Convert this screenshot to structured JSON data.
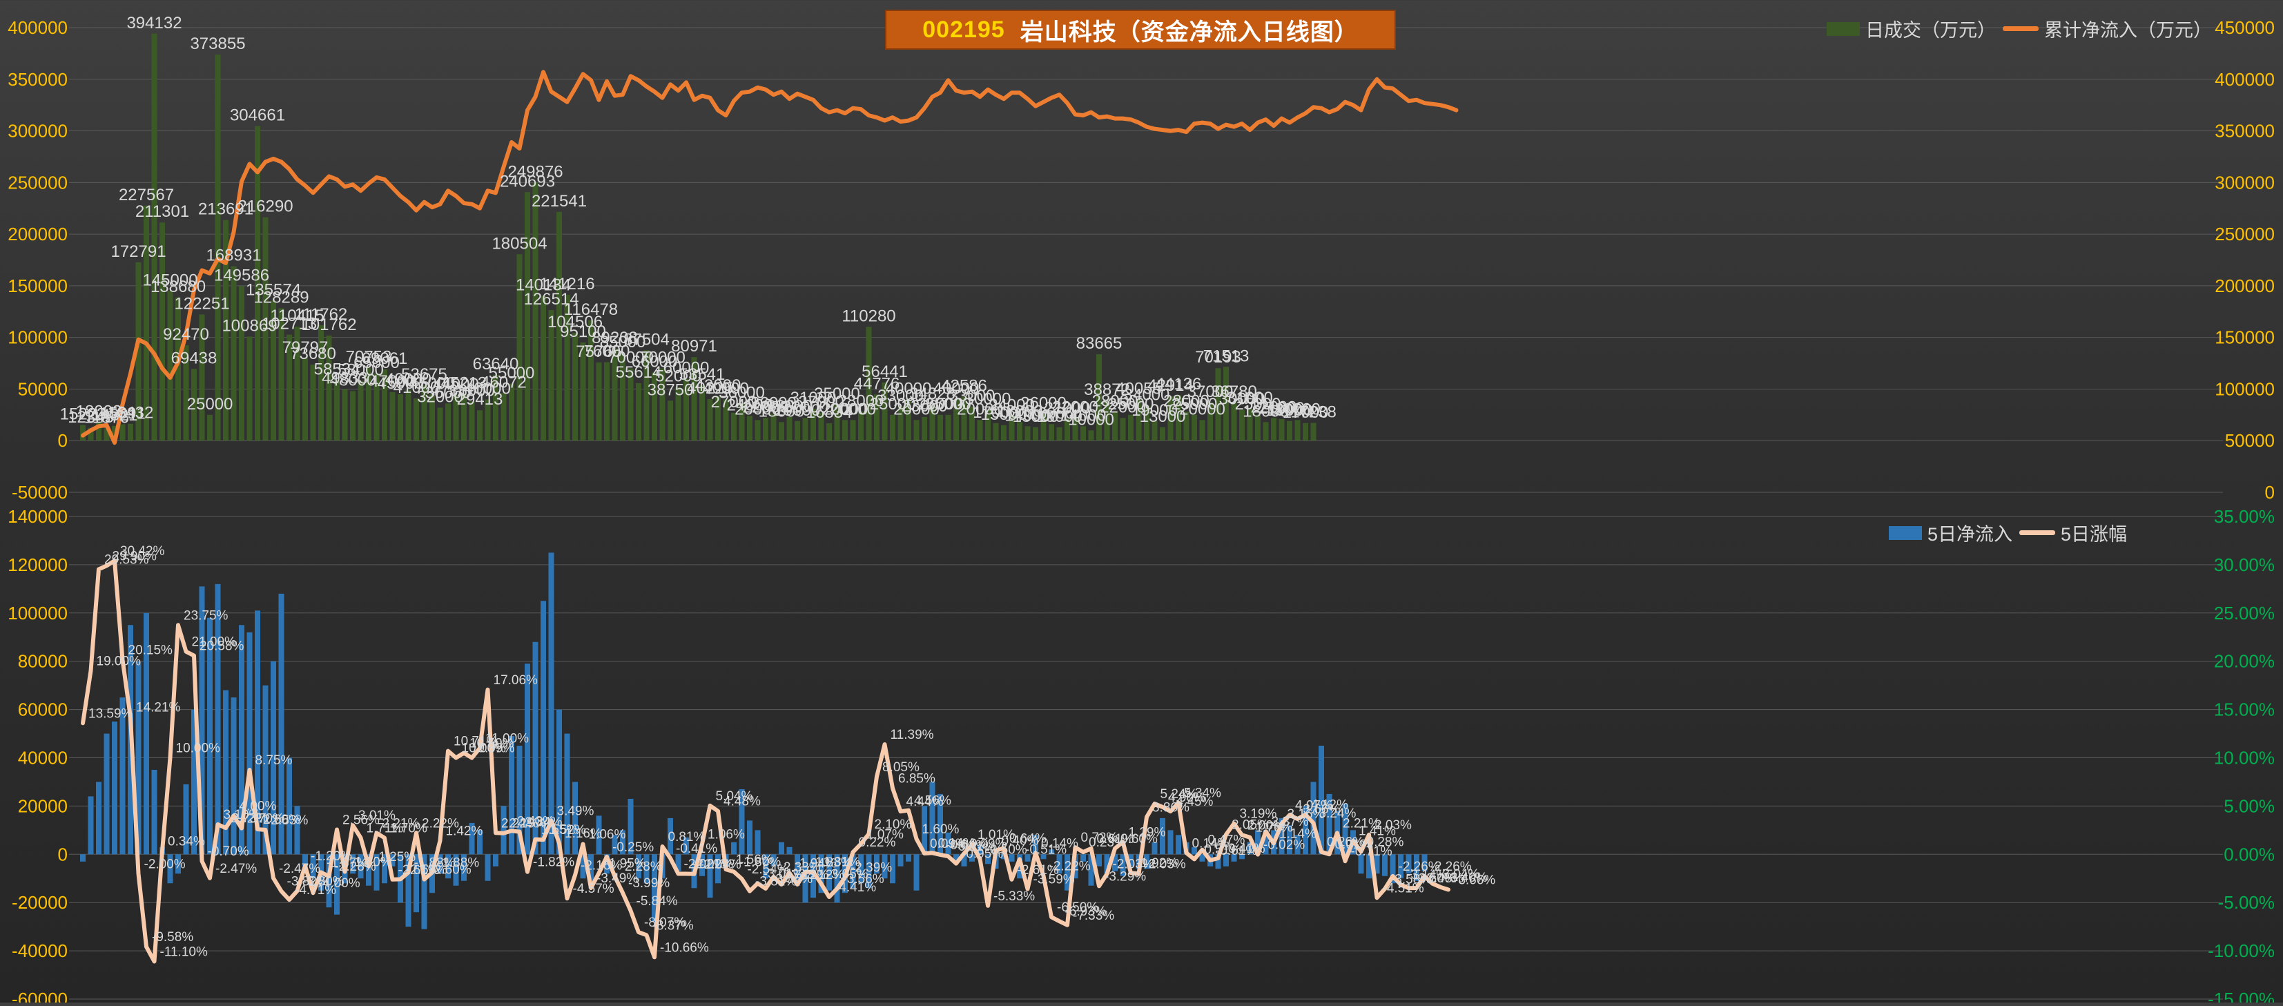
{
  "title": {
    "code": "002195",
    "text": "岩山科技（资金净流入日线图）"
  },
  "legend_top": {
    "bar": "日成交（万元）",
    "line": "累计净流入（万元）"
  },
  "legend_bottom": {
    "bar": "5日净流入",
    "line": "5日涨幅"
  },
  "colors": {
    "volume_bar": "#3c5a26",
    "cum_line": "#ed7d31",
    "inflow_bar": "#2e75b6",
    "change_line": "#f8cbad",
    "left_tick": "#ffc000",
    "right_tick_top": "#ffc000",
    "right_tick_bottom": "#00b050",
    "label": "#d9d9d9"
  },
  "chart_data": [
    {
      "type": "bar+line",
      "title": "002195 岩山科技（资金净流入日线图）",
      "left_axis": {
        "range": [
          -50000,
          400000
        ],
        "ticks": [
          "-50000",
          "0",
          "50000",
          "100000",
          "150000",
          "200000",
          "250000",
          "300000",
          "350000",
          "400000"
        ]
      },
      "right_axis": {
        "range": [
          0,
          450000
        ],
        "ticks": [
          "0",
          "50000",
          "100000",
          "150000",
          "200000",
          "250000",
          "300000",
          "350000",
          "400000",
          "450000"
        ]
      },
      "series": [
        {
          "name": "日成交（万元）",
          "type": "bar",
          "axis": "left",
          "values": [
            15223,
            12345,
            18002,
            11876,
            14321,
            15891,
            16432,
            172791,
            227567,
            394132,
            211301,
            145000,
            138680,
            92470,
            69438,
            122251,
            25000,
            373855,
            213691,
            168931,
            149586,
            100869,
            304661,
            216290,
            135574,
            128289,
            102713,
            110415,
            79797,
            73680,
            111762,
            101762,
            58534,
            49833,
            48000,
            58000,
            70753,
            65000,
            69061,
            47000,
            45000,
            49000,
            41000,
            53675,
            45000,
            32000,
            36000,
            44000,
            45213,
            38000,
            29413,
            40000,
            63640,
            46072,
            55000,
            180504,
            240693,
            249876,
            140134,
            126514,
            221541,
            141216,
            104506,
            95100,
            116478,
            75765,
            76000,
            89208,
            85000,
            70000,
            55614,
            87504,
            66000,
            70000,
            38750,
            52000,
            60000,
            80971,
            53541,
            40225,
            43000,
            40000,
            27000,
            36000,
            24000,
            20000,
            22000,
            26000,
            18000,
            23000,
            19000,
            22000,
            31000,
            27000,
            16834,
            35000,
            20000,
            20000,
            28000,
            110280,
            44776,
            56441,
            25000,
            33000,
            40000,
            20000,
            23000,
            34828,
            25000,
            25000,
            40000,
            42586,
            33000,
            20000,
            30000,
            17000,
            15000,
            24000,
            18000,
            14000,
            13000,
            26000,
            16000,
            13000,
            21000,
            22000,
            14000,
            10000,
            83665,
            38872,
            28000,
            22000,
            25000,
            40055,
            34000,
            19000,
            13000,
            42914,
            44136,
            28000,
            25000,
            20000,
            37000,
            70193,
            71513,
            36780,
            30000,
            31000,
            25000,
            18000,
            22000,
            21000,
            19000,
            20000,
            17000,
            17238
          ]
        },
        {
          "name": "累计净流入（万元）",
          "type": "line",
          "axis": "right",
          "values": [
            55000,
            60000,
            64000,
            65000,
            48000,
            85000,
            115000,
            148000,
            144000,
            134000,
            120000,
            111000,
            126000,
            153000,
            196000,
            215000,
            212000,
            226000,
            222000,
            252000,
            301000,
            318000,
            310000,
            320000,
            323000,
            320000,
            313000,
            303000,
            297000,
            290000,
            298000,
            306000,
            303000,
            296000,
            298000,
            292000,
            299000,
            305000,
            303000,
            295000,
            287000,
            281000,
            273000,
            281000,
            276000,
            279000,
            292000,
            287000,
            280000,
            279000,
            275000,
            292000,
            290000,
            315000,
            339000,
            333000,
            370000,
            383000,
            407000,
            388000,
            383000,
            378000,
            391000,
            405000,
            399000,
            380000,
            398000,
            384000,
            385000,
            403000,
            399000,
            393000,
            388000,
            382000,
            395000,
            389000,
            397000,
            380000,
            384000,
            382000,
            370000,
            365000,
            379000,
            387000,
            388000,
            392000,
            390000,
            385000,
            388000,
            381000,
            386000,
            383000,
            380000,
            372000,
            368000,
            370000,
            367000,
            372000,
            371000,
            365000,
            363000,
            360000,
            363000,
            359000,
            360000,
            363000,
            372000,
            383000,
            387000,
            399000,
            389000,
            387000,
            388000,
            383000,
            390000,
            385000,
            381000,
            387000,
            387000,
            381000,
            374000,
            378000,
            382000,
            385000,
            377000,
            366000,
            365000,
            368000,
            363000,
            364000,
            362000,
            362000,
            361000,
            358000,
            354000,
            352000,
            351000,
            350000,
            351000,
            349000,
            357000,
            358000,
            357000,
            352000,
            356000,
            354000,
            357000,
            351000,
            358000,
            361000,
            355000,
            362000,
            358000,
            363000,
            367000,
            373000,
            372000,
            368000,
            371000,
            378000,
            375000,
            370000,
            390000,
            400000,
            392000,
            391000,
            385000,
            379000,
            380000,
            377000,
            376000,
            375000,
            373000,
            370000
          ]
        }
      ]
    },
    {
      "type": "bar+line",
      "left_axis": {
        "range": [
          -60000,
          140000
        ],
        "ticks": [
          "-60000",
          "-40000",
          "-20000",
          "0",
          "20000",
          "40000",
          "60000",
          "80000",
          "100000",
          "120000",
          "140000"
        ]
      },
      "right_axis": {
        "range": [
          -15,
          35
        ],
        "ticks": [
          "-15.00%",
          "-10.00%",
          "-5.00%",
          "0.00%",
          "5.00%",
          "10.00%",
          "15.00%",
          "20.00%",
          "25.00%",
          "30.00%",
          "35.00%"
        ]
      },
      "series": [
        {
          "name": "5日净流入",
          "type": "bar",
          "axis": "left",
          "values": [
            -3000,
            24000,
            30000,
            50000,
            55000,
            65000,
            95000,
            80000,
            100000,
            35000,
            3000,
            -12000,
            -8000,
            29000,
            60000,
            111000,
            98000,
            112000,
            68000,
            65000,
            95000,
            92000,
            101000,
            70000,
            80000,
            108000,
            40000,
            20000,
            -5000,
            -10000,
            -15000,
            -22000,
            -25000,
            -12000,
            -8000,
            -10000,
            -13000,
            -15000,
            -12000,
            -5000,
            -20000,
            -30000,
            -24000,
            -31000,
            -16000,
            -8000,
            -10000,
            -13000,
            -11000,
            13000,
            10000,
            -11000,
            -5000,
            20000,
            49000,
            45000,
            79000,
            88000,
            105000,
            125000,
            60000,
            50000,
            30000,
            -10000,
            -11000,
            16000,
            -8000,
            8000,
            10000,
            23000,
            -10000,
            -12000,
            -28000,
            -10000,
            15000,
            -7000,
            7000,
            -14000,
            -9000,
            -18000,
            -12000,
            -5000,
            5000,
            27000,
            14000,
            10000,
            -10000,
            -5000,
            5000,
            3000,
            -13000,
            -20000,
            -18000,
            -16000,
            -15000,
            -20000,
            -16000,
            -14000,
            -12000,
            -14000,
            -8000,
            -10000,
            -12000,
            -5000,
            -3000,
            -15000,
            20000,
            30000,
            25000,
            9000,
            -3000,
            -5000,
            -3000,
            4000,
            -4000,
            -6000,
            -2000,
            -3000,
            -10000,
            -3000,
            8000,
            -2000,
            2000,
            -8000,
            -15000,
            -10000,
            -3000,
            -13000,
            -5000,
            -8000,
            -7000,
            -9000,
            -5000,
            -6000,
            -6000,
            5000,
            15000,
            10000,
            8000,
            5000,
            3000,
            -3000,
            -5000,
            -6000,
            -5000,
            -3000,
            -2000,
            5000,
            10000,
            10000,
            10000,
            15000,
            12000,
            8000,
            20000,
            30000,
            45000,
            25000,
            18000,
            21000,
            10000,
            -8000,
            -10000,
            -8000,
            -9000,
            -12000,
            -10000,
            -8000,
            -11000,
            -7000
          ]
        },
        {
          "name": "5日涨幅",
          "type": "line",
          "axis": "right",
          "values": [
            13.59,
            19.0,
            29.53,
            29.9,
            30.42,
            20.15,
            14.21,
            -2.0,
            -9.58,
            -11.1,
            0.34,
            10.0,
            23.75,
            21.0,
            20.58,
            -0.7,
            -2.47,
            3.1,
            2.73,
            4.0,
            2.7,
            8.75,
            2.6,
            2.53,
            -2.47,
            -3.82,
            -4.71,
            -3.8,
            -1.2,
            -4.0,
            -1.87,
            -2.28,
            2.56,
            -1.8,
            3.01,
            1.71,
            -1.25,
            2.21,
            1.7,
            -2.61,
            -2.58,
            -1.88,
            2.22,
            -2.6,
            -1.88,
            1.42,
            10.71,
            10.0,
            10.5,
            9.99,
            11.0,
            17.06,
            2.22,
            2.19,
            2.43,
            2.34,
            -1.82,
            1.55,
            1.52,
            3.49,
            1.16,
            -4.57,
            -2.16,
            1.06,
            -3.49,
            -1.95,
            -0.25,
            -2.28,
            -3.99,
            -5.84,
            -8.07,
            -8.37,
            -10.66,
            0.81,
            -0.41,
            -2.02,
            -2.02,
            -2.04,
            1.06,
            5.04,
            4.48,
            -1.56,
            -1.8,
            -2.54,
            -3.81,
            -3.01,
            -3.55,
            -2.33,
            -3.12,
            -1.94,
            -3.12,
            -1.83,
            -1.81,
            -3.05,
            -4.41,
            -3.56,
            -2.39,
            0.22,
            1.07,
            2.1,
            8.05,
            11.39,
            6.85,
            4.44,
            4.56,
            1.6,
            0.09,
            0.14,
            -0.04,
            -0.21,
            -0.95,
            0.09,
            1.01,
            -0.5,
            -5.33,
            0.4,
            0.64,
            -2.61,
            -0.51,
            -3.59,
            0.14,
            -2.22,
            -6.5,
            -6.93,
            -7.33,
            0.72,
            0.23,
            0.61,
            -3.29,
            -2.03,
            0.6,
            1.29,
            -1.92,
            -2.03,
            3.86,
            5.24,
            4.9,
            4.45,
            5.34,
            0.14,
            -0.51,
            0.47,
            -0.61,
            -0.41,
            2.05,
            3.19,
            2.0,
            1.76,
            -0.02,
            2.37,
            1.14,
            3.16,
            4.07,
            3.66,
            4.12,
            3.24,
            0.26,
            0.01,
            2.21,
            -0.71,
            1.41,
            0.28,
            2.03,
            -4.51,
            -3.58,
            -2.26,
            -3.14,
            -3.5,
            -3.48,
            -2.26,
            -3.04,
            -3.4,
            -3.66
          ]
        }
      ]
    }
  ]
}
